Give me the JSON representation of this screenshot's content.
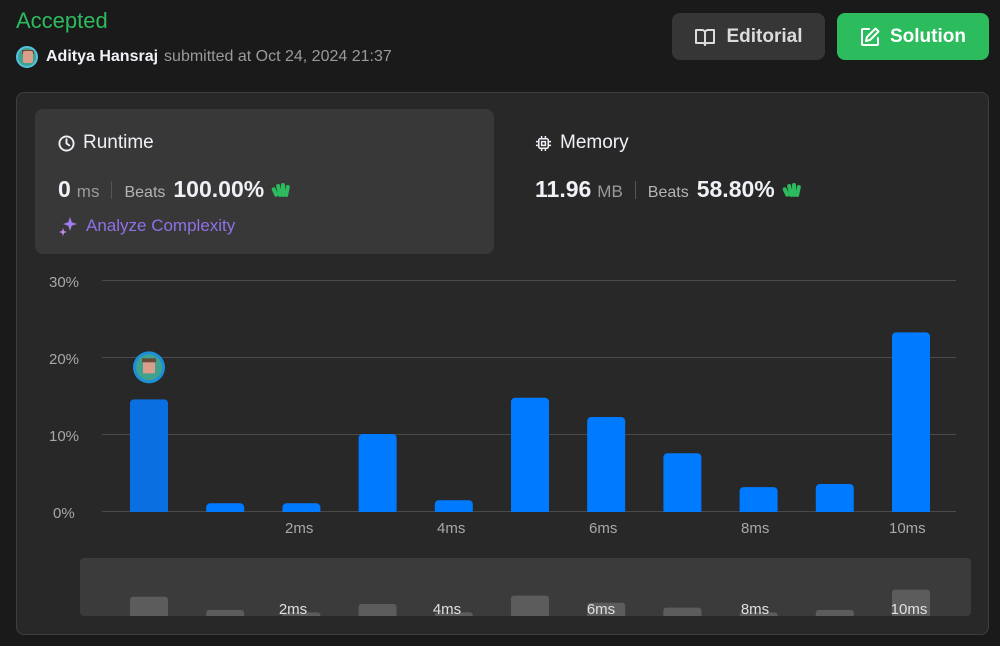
{
  "result": {
    "status": "Accepted",
    "username": "Aditya Hansraj",
    "submitted_text": "submitted at Oct 24, 2024 21:37"
  },
  "buttons": {
    "editorial": "Editorial",
    "solution": "Solution"
  },
  "runtime": {
    "title": "Runtime",
    "value": "0",
    "unit": "ms",
    "beats_label": "Beats",
    "beats": "100.00%",
    "analyze_label": "Analyze Complexity"
  },
  "memory": {
    "title": "Memory",
    "value": "11.96",
    "unit": "MB",
    "beats_label": "Beats",
    "beats": "58.80%"
  },
  "colors": {
    "accepted": "#2cbb5d",
    "bar": "#007aff",
    "analyze": "#8f70e6",
    "hands": "#2cbb5d"
  },
  "chart_data": {
    "type": "bar",
    "y_ticks": [
      "30%",
      "20%",
      "10%",
      "0%"
    ],
    "x_ticks": [
      "2ms",
      "4ms",
      "6ms",
      "8ms",
      "10ms"
    ],
    "ylim": [
      0,
      30
    ],
    "values": [
      14.5,
      1.0,
      1.0,
      10.0,
      1.4,
      14.7,
      12.2,
      7.5,
      3.1,
      3.5,
      23.2
    ],
    "highlight_index": 0,
    "navigator_values": [
      3.2,
      1.0,
      0.6,
      2.0,
      0.6,
      3.4,
      2.2,
      1.4,
      0.6,
      1.0,
      4.4
    ]
  }
}
